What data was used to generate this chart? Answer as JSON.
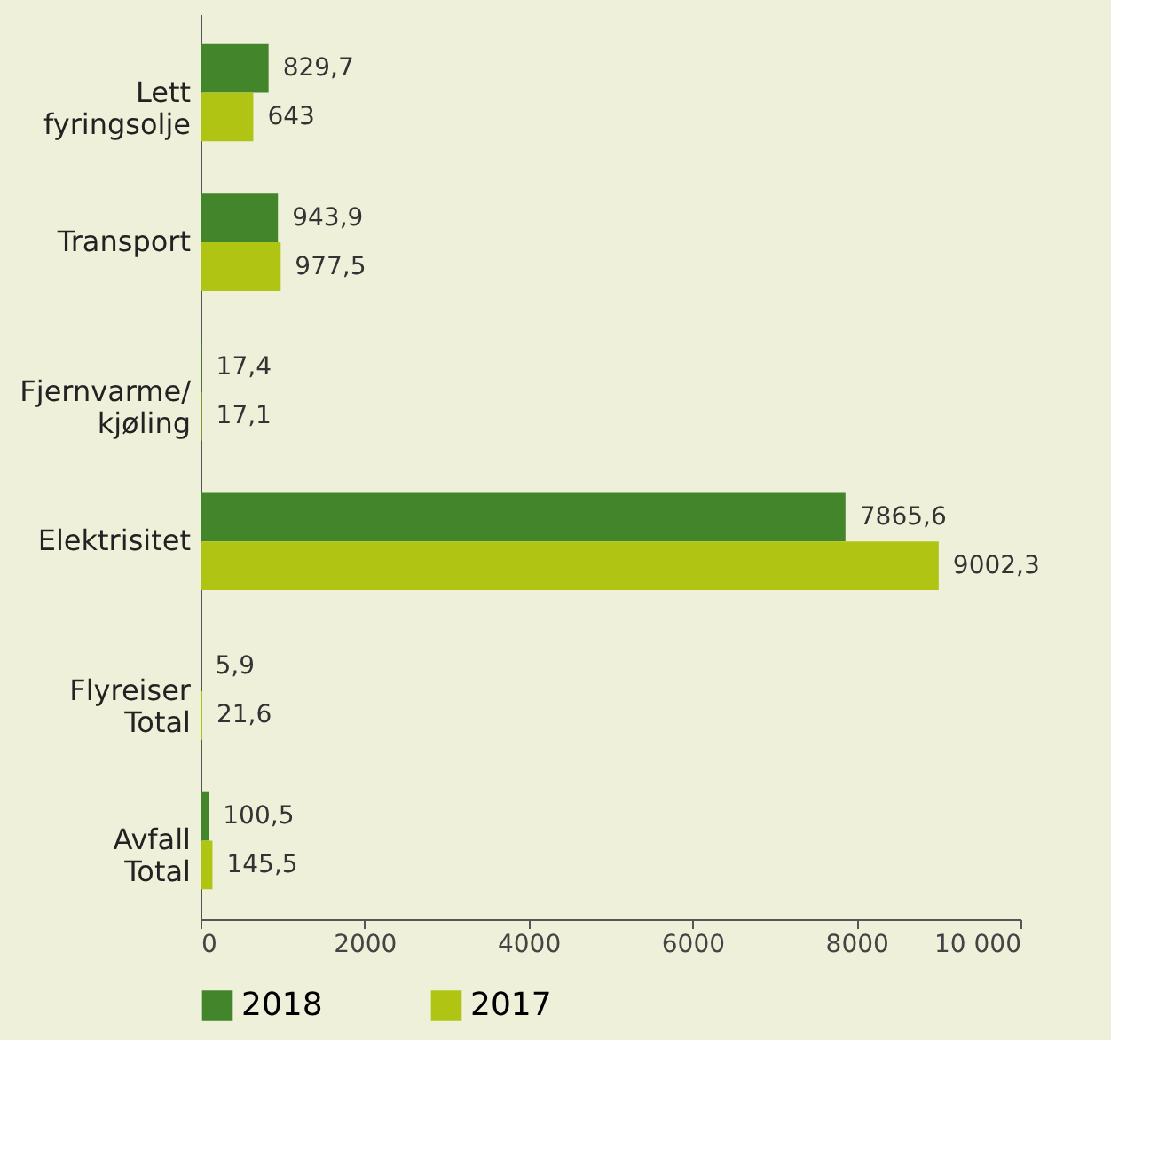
{
  "chart_data": {
    "type": "bar",
    "orientation": "horizontal",
    "categories": [
      "Lett\nfyringsolje",
      "Transport",
      "Fjernvarme/\nkjøling",
      "Elektrisitet",
      "Flyreiser\nTotal",
      "Avfall\nTotal"
    ],
    "series": [
      {
        "name": "2018",
        "color": "#43852a",
        "values": [
          829.7,
          943.9,
          17.4,
          7865.6,
          5.9,
          100.5
        ],
        "value_labels": [
          "829,7",
          "943,9",
          "17,4",
          "7865,6",
          "5,9",
          "100,5"
        ]
      },
      {
        "name": "2017",
        "color": "#b0c414",
        "values": [
          643,
          977.5,
          17.1,
          9002.3,
          21.6,
          145.5
        ],
        "value_labels": [
          "643",
          "977,5",
          "17,1",
          "9002,3",
          "21,6",
          "145,5"
        ]
      }
    ],
    "xlim": [
      0,
      10000
    ],
    "xticks": [
      0,
      2000,
      4000,
      6000,
      8000,
      {
        "value": 10000,
        "label": "10 000"
      }
    ],
    "grid": false,
    "legend": "bottom"
  }
}
